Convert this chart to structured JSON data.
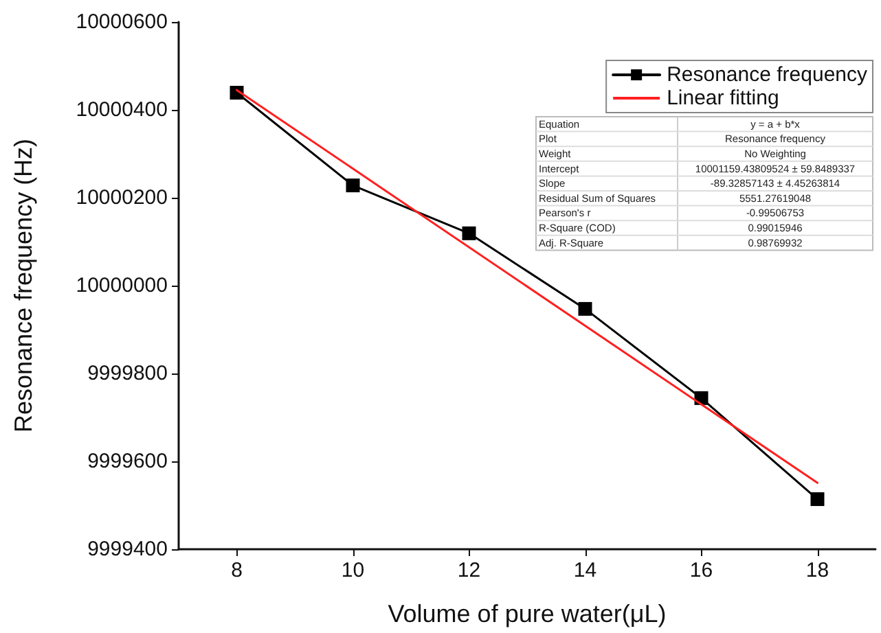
{
  "chart_data": {
    "type": "line",
    "xlabel": "Volume of pure water(μL)",
    "ylabel": "Resonance frequency (Hz)",
    "x": [
      8,
      10,
      12,
      14,
      16,
      18
    ],
    "series": [
      {
        "name": "Resonance frequency",
        "color": "#000000",
        "marker": "square",
        "values": [
          10000439,
          10000228,
          10000119,
          9999947,
          9999744,
          9999514
        ]
      },
      {
        "name": "Linear fitting",
        "color": "#ff2020",
        "marker": "none",
        "x": [
          8,
          18
        ],
        "values": [
          10000445,
          9999551
        ]
      }
    ],
    "xlim": [
      7,
      19
    ],
    "xticks": [
      8,
      10,
      12,
      14,
      16,
      18
    ],
    "ylim": [
      9999400,
      10000600
    ],
    "yticks": [
      9999400,
      9999600,
      9999800,
      10000000,
      10000200,
      10000400,
      10000600
    ],
    "grid": false,
    "legend": "top right",
    "annotations": [
      "Equation",
      "y = a + b*x",
      "Plot",
      "Resonance frequency",
      "Weight",
      "No Weighting",
      "Intercept",
      "10001159.43809524 ± 59.8489337",
      "Slope",
      "-89.32857143 ± 4.45263814",
      "Residual Sum of Squares",
      "5551.27619048",
      "Pearson's r",
      "-0.99506753",
      "R-Square (COD)",
      "0.99015946",
      "Adj. R-Square",
      "0.98769932"
    ]
  }
}
